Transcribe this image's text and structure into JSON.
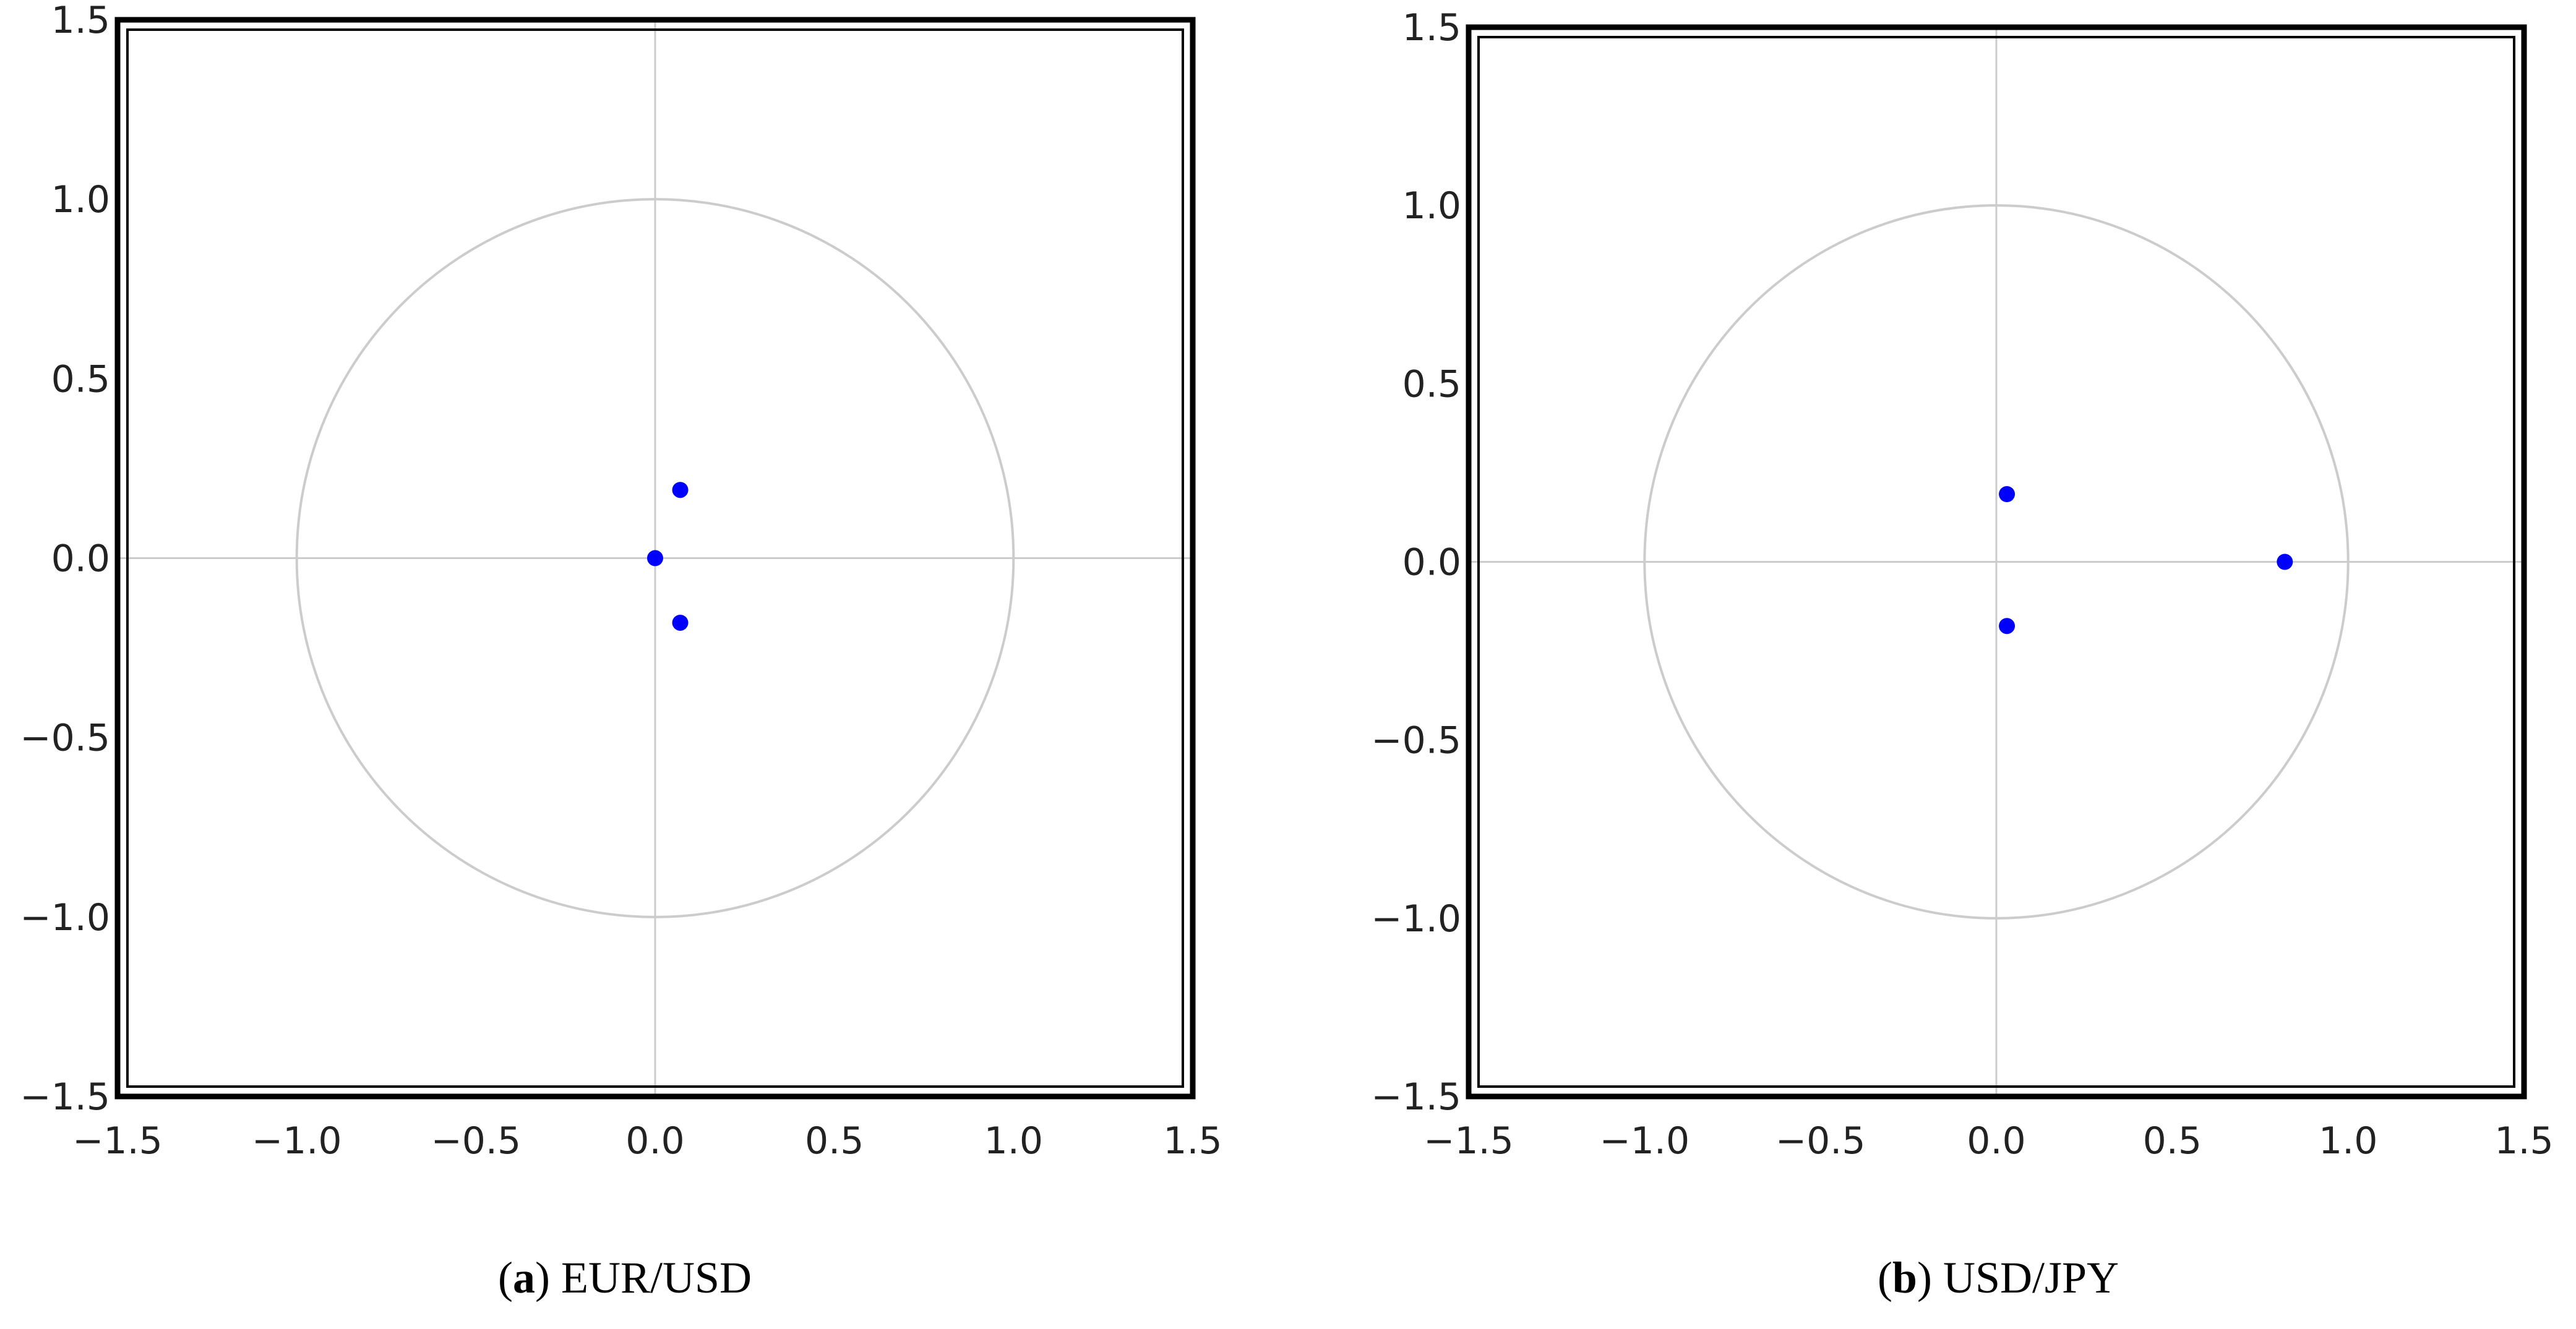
{
  "figure": {
    "panels": [
      {
        "letter": "a",
        "caption_text": "EUR/USD"
      },
      {
        "letter": "b",
        "caption_text": "USD/JPY"
      }
    ]
  },
  "chart_data": [
    {
      "type": "scatter",
      "title": "",
      "xlabel": "",
      "ylabel": "",
      "xlim": [
        -1.5,
        1.5
      ],
      "ylim": [
        -1.5,
        1.5
      ],
      "xticks": [
        "−1.5",
        "−1.0",
        "−0.5",
        "0.0",
        "0.5",
        "1.0",
        "1.5"
      ],
      "yticks": [
        "1.5",
        "1.0",
        "0.5",
        "0.0",
        "−0.5",
        "−1.0",
        "−1.5"
      ],
      "grid": false,
      "reference_lines": {
        "unit_circle": true,
        "x_axis": true,
        "y_axis": true
      },
      "points": [
        {
          "x": 0.07,
          "y": 0.19
        },
        {
          "x": 0.0,
          "y": 0.0
        },
        {
          "x": 0.07,
          "y": -0.18
        }
      ],
      "point_color": "#0000ff",
      "reference_color": "#cccccc",
      "frame_color": "#000000"
    },
    {
      "type": "scatter",
      "title": "",
      "xlabel": "",
      "ylabel": "",
      "xlim": [
        -1.5,
        1.5
      ],
      "ylim": [
        -1.5,
        1.5
      ],
      "xticks": [
        "−1.5",
        "−1.0",
        "−0.5",
        "0.0",
        "0.5",
        "1.0",
        "1.5"
      ],
      "yticks": [
        "1.5",
        "1.0",
        "0.5",
        "0.0",
        "−0.5",
        "−1.0",
        "−1.5"
      ],
      "grid": false,
      "reference_lines": {
        "unit_circle": true,
        "x_axis": true,
        "y_axis": true
      },
      "points": [
        {
          "x": 0.03,
          "y": 0.19
        },
        {
          "x": 0.03,
          "y": -0.18
        },
        {
          "x": 0.82,
          "y": 0.0
        }
      ],
      "point_color": "#0000ff",
      "reference_color": "#cccccc",
      "frame_color": "#000000"
    }
  ]
}
